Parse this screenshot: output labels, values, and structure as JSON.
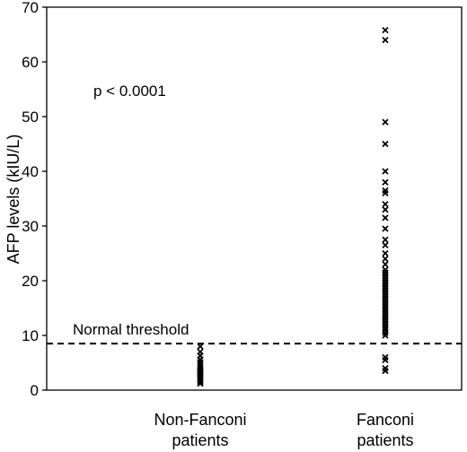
{
  "chart_data": {
    "type": "scatter",
    "title": "",
    "xlabel": "",
    "ylabel": "AFP levels (kIU/L)",
    "ylim": [
      0,
      70
    ],
    "yticks": [
      0,
      10,
      20,
      30,
      40,
      50,
      60,
      70
    ],
    "grid": false,
    "legend": "none",
    "marker": "x",
    "marker_color": "#000000",
    "categories": [
      "Non-Fanconi patients",
      "Fanconi patients"
    ],
    "category_lines": [
      [
        "Non-Fanconi",
        "patients"
      ],
      [
        "Fanconi",
        "patients"
      ]
    ],
    "series": [
      {
        "category": "Non-Fanconi patients",
        "values": [
          8.0,
          7.0,
          6.3,
          5.6,
          5.1,
          4.7,
          4.3,
          4.0,
          3.7,
          3.4,
          3.1,
          2.8,
          2.5,
          2.2,
          2.0,
          1.7,
          1.5,
          1.2
        ]
      },
      {
        "category": "Fanconi patients",
        "values": [
          65.8,
          64.0,
          49.0,
          45.0,
          40.0,
          38.0,
          36.5,
          36.0,
          34.0,
          33.0,
          31.5,
          29.5,
          27.5,
          26.5,
          25.0,
          24.0,
          23.0,
          22.0,
          21.5,
          21.0,
          20.5,
          20.0,
          19.5,
          19.0,
          18.5,
          18.0,
          17.5,
          17.0,
          16.5,
          16.0,
          15.5,
          15.0,
          14.5,
          14.0,
          13.5,
          13.0,
          12.5,
          12.0,
          11.5,
          11.0,
          10.5,
          10.0,
          6.0,
          5.5,
          4.0,
          3.5
        ]
      }
    ],
    "annotations": {
      "p_value": "p < 0.0001",
      "threshold_label": "Normal threshold",
      "threshold_value": 8.5
    }
  }
}
